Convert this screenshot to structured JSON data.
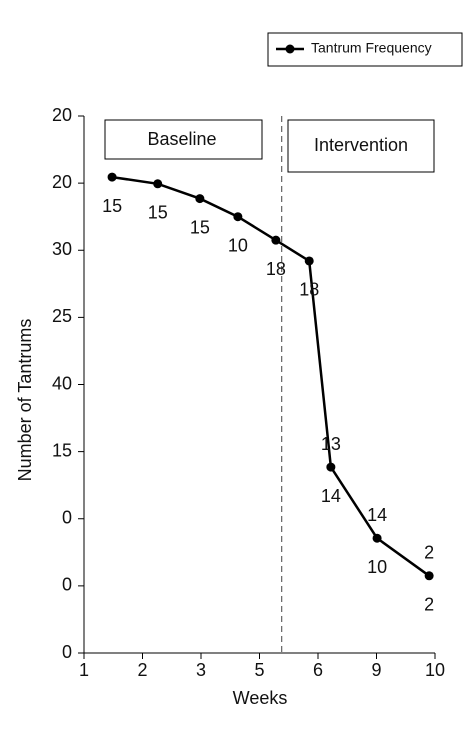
{
  "chart_data": {
    "type": "line",
    "legend": "upper right",
    "series": [
      {
        "name": "Tantrum Frequency",
        "color": "#000000",
        "x": [
          1.48,
          2.26,
          2.98,
          3.63,
          4.28,
          4.85,
          5.22,
          6.01,
          6.9
        ],
        "values": [
          7.09,
          6.99,
          6.77,
          6.5,
          6.15,
          5.84,
          2.77,
          1.71,
          1.15
        ]
      }
    ],
    "labels_below": [
      "15",
      "15",
      "15",
      "10",
      "18",
      "18",
      "14",
      "10",
      "2"
    ],
    "labels_above": [
      null,
      null,
      null,
      null,
      null,
      null,
      "13",
      "14",
      "2"
    ],
    "xlabel": "Weeks",
    "ylabel": "Number of Tantrums",
    "xlim": [
      1,
      7
    ],
    "xticks": [
      1,
      2,
      3,
      {
        "value": 4,
        "label": "5"
      },
      {
        "value": 5,
        "label": "6"
      },
      {
        "value": 6,
        "label": "9"
      },
      {
        "value": 7,
        "label": "10"
      }
    ],
    "ylim": [
      0,
      8
    ],
    "yticks": [
      {
        "value": 0,
        "label": "0"
      },
      {
        "value": 1,
        "label": "0"
      },
      {
        "value": 2,
        "label": "0"
      },
      {
        "value": 3,
        "label": "15"
      },
      {
        "value": 4,
        "label": "40"
      },
      {
        "value": 5,
        "label": "25"
      },
      {
        "value": 6,
        "label": "30"
      },
      {
        "value": 7,
        "label": "20"
      },
      {
        "value": 8,
        "label": "20"
      }
    ],
    "phases": [
      {
        "label": "Baseline"
      },
      {
        "label": "Intervention"
      }
    ],
    "phase_change_x": 4.38
  }
}
